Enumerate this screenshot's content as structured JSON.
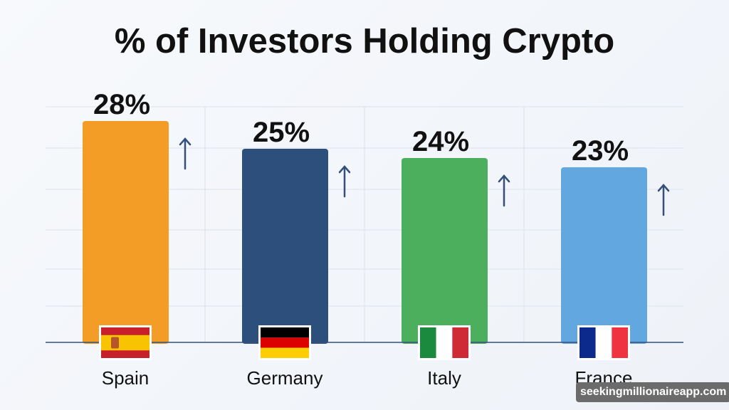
{
  "chart_data": {
    "type": "bar",
    "title": "% of Investors Holding Crypto",
    "categories": [
      "Spain",
      "Germany",
      "Italy",
      "France"
    ],
    "values": [
      28,
      25,
      24,
      23
    ],
    "data_labels": [
      "28%",
      "25%",
      "24%",
      "23%"
    ],
    "colors": [
      "#f39c26",
      "#2d4f7c",
      "#4caf5e",
      "#62a7e0"
    ],
    "flags": [
      "spain-flag",
      "germany-flag",
      "italy-flag",
      "france-flag"
    ],
    "trend_icon": "arrow-up-icon",
    "grid": true,
    "xlabel": "",
    "ylabel": ""
  },
  "watermark": "seekingmillionaireapp.com"
}
